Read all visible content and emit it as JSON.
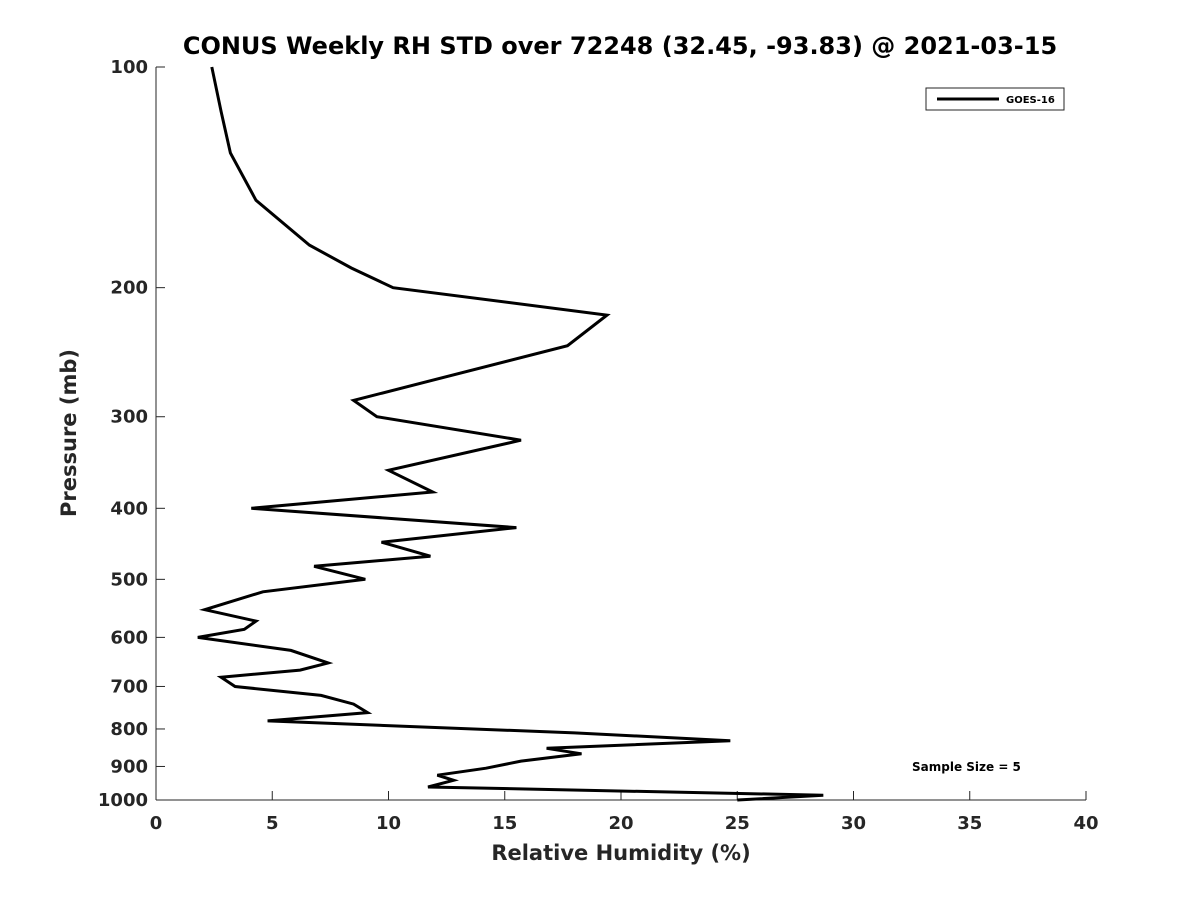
{
  "chart_data": {
    "type": "line",
    "title": "CONUS Weekly RH STD over 72248 (32.45, -93.83) @ 2021-03-15",
    "xlabel": "Relative Humidity (%)",
    "ylabel": "Pressure (mb)",
    "xlim": [
      0,
      40
    ],
    "ylim": [
      100,
      1000
    ],
    "y_scale": "log",
    "y_reversed": true,
    "x_ticks": [
      0,
      5,
      10,
      15,
      20,
      25,
      30,
      35,
      40
    ],
    "x_tick_labels": [
      "0",
      "5",
      "10",
      "15",
      "20",
      "25",
      "30",
      "35",
      "40"
    ],
    "y_ticks": [
      100,
      200,
      300,
      400,
      500,
      600,
      700,
      800,
      900,
      1000
    ],
    "y_tick_labels": [
      "100",
      "200",
      "300",
      "400",
      "500",
      "600",
      "700",
      "800",
      "900",
      "1000"
    ],
    "grid": false,
    "legend": {
      "position": "top-right",
      "entries": [
        "GOES-16"
      ]
    },
    "annotation": "Sample Size = 5",
    "series": [
      {
        "name": "GOES-16",
        "color": "#000000",
        "x": [
          2.4,
          2.8,
          3.2,
          4.3,
          6.6,
          8.4,
          10.2,
          19.4,
          17.7,
          8.5,
          9.5,
          15.7,
          10.0,
          11.9,
          4.1,
          15.5,
          9.7,
          11.8,
          6.8,
          9.0,
          4.6,
          2.1,
          4.3,
          3.8,
          1.8,
          5.8,
          7.4,
          6.2,
          2.8,
          3.4,
          7.1,
          8.5,
          9.1,
          4.8,
          18.0,
          24.7,
          16.8,
          18.3,
          15.7,
          14.2,
          12.1,
          12.8,
          11.7,
          28.7,
          25.0
        ],
        "y": [
          100,
          115,
          131,
          152,
          175,
          188,
          200,
          218,
          240,
          285,
          300,
          323,
          355,
          380,
          400,
          425,
          445,
          465,
          480,
          500,
          520,
          550,
          570,
          585,
          600,
          625,
          650,
          665,
          680,
          700,
          720,
          740,
          760,
          780,
          810,
          830,
          850,
          865,
          885,
          905,
          925,
          940,
          960,
          985,
          1000
        ]
      }
    ]
  }
}
